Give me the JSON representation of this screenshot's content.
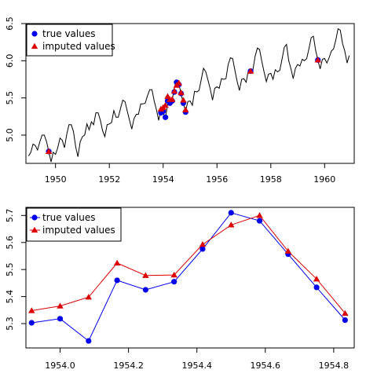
{
  "colors": {
    "true": "#0000ee",
    "imputed": "#dd0000",
    "line": "#000000",
    "axis": "#000000",
    "bg": "#ffffff"
  },
  "chart_data": [
    {
      "type": "line",
      "grid": false,
      "legend_position": "top-left",
      "xlim": [
        1948.9,
        1961.1
      ],
      "ylim": [
        4.62,
        6.5
      ],
      "xticks": [
        1950,
        1952,
        1954,
        1956,
        1958,
        1960
      ],
      "yticks": [
        5.0,
        5.5,
        6.0,
        6.5
      ],
      "ytick_labels": [
        "5.0",
        "5.5",
        "6.0",
        "6.5"
      ],
      "legend": [
        {
          "label": "true values",
          "marker": "circle",
          "color_key": "true"
        },
        {
          "label": "imputed values",
          "marker": "triangle",
          "color_key": "imputed"
        }
      ],
      "series_line": {
        "start": 1949,
        "step_months": 1,
        "values": [
          4.72,
          4.77,
          4.88,
          4.86,
          4.8,
          4.91,
          5.0,
          5.0,
          4.91,
          4.78,
          4.64,
          4.77,
          4.74,
          4.83,
          4.96,
          4.93,
          4.83,
          5.01,
          5.14,
          5.14,
          5.05,
          4.84,
          4.71,
          4.91,
          4.98,
          5.0,
          5.15,
          5.07,
          5.18,
          5.14,
          5.3,
          5.3,
          5.2,
          5.06,
          4.98,
          5.14,
          5.15,
          5.17,
          5.33,
          5.24,
          5.24,
          5.36,
          5.47,
          5.45,
          5.32,
          5.2,
          5.08,
          5.22,
          5.28,
          5.28,
          5.42,
          5.42,
          5.43,
          5.53,
          5.61,
          5.61,
          5.46,
          5.34,
          5.2,
          5.34,
          5.31,
          5.22,
          5.42,
          5.4,
          5.46,
          5.65,
          5.71,
          5.69,
          5.55,
          5.43,
          5.32,
          5.45,
          5.46,
          5.4,
          5.59,
          5.58,
          5.6,
          5.75,
          5.9,
          5.85,
          5.74,
          5.62,
          5.47,
          5.63,
          5.65,
          5.63,
          5.76,
          5.75,
          5.76,
          5.95,
          6.04,
          6.03,
          5.87,
          5.72,
          5.6,
          5.75,
          5.76,
          5.71,
          5.87,
          5.85,
          5.87,
          6.06,
          6.17,
          6.15,
          5.99,
          5.85,
          5.72,
          5.82,
          5.83,
          5.75,
          5.88,
          5.85,
          5.87,
          6.02,
          6.18,
          6.22,
          6.0,
          5.89,
          5.76,
          5.9,
          5.95,
          5.93,
          6.02,
          6.0,
          6.03,
          6.16,
          6.31,
          6.33,
          6.14,
          6.01,
          5.89,
          6.02,
          6.03,
          5.97,
          6.04,
          6.13,
          6.16,
          6.28,
          6.43,
          6.41,
          6.23,
          6.13,
          5.97,
          6.07
        ]
      },
      "true_points": {
        "x": [
          1949.75,
          1953.9167,
          1954.0,
          1954.0833,
          1954.1667,
          1954.25,
          1954.3333,
          1954.4167,
          1954.5,
          1954.5833,
          1954.6667,
          1954.75,
          1954.8333,
          1957.25,
          1959.75
        ],
        "y": [
          4.78,
          5.3,
          5.32,
          5.24,
          5.46,
          5.43,
          5.46,
          5.58,
          5.71,
          5.68,
          5.56,
          5.43,
          5.31,
          5.86,
          6.01
        ]
      },
      "imputed_points": {
        "x": [
          1949.75,
          1953.9167,
          1954.0,
          1954.0833,
          1954.1667,
          1954.25,
          1954.3333,
          1954.4167,
          1954.5,
          1954.5833,
          1954.6667,
          1954.75,
          1954.8333,
          1957.25,
          1959.75
        ],
        "y": [
          4.78,
          5.35,
          5.37,
          5.4,
          5.52,
          5.48,
          5.48,
          5.59,
          5.67,
          5.7,
          5.57,
          5.47,
          5.34,
          5.86,
          6.01
        ]
      }
    },
    {
      "type": "line",
      "grid": false,
      "legend_position": "top-left",
      "xlim": [
        1953.9,
        1954.86
      ],
      "ylim": [
        5.21,
        5.73
      ],
      "xticks": [
        1954.0,
        1954.2,
        1954.4,
        1954.6,
        1954.8
      ],
      "xtick_labels": [
        "1954.0",
        "1954.2",
        "1954.4",
        "1954.6",
        "1954.8"
      ],
      "yticks": [
        5.3,
        5.4,
        5.5,
        5.6,
        5.7
      ],
      "ytick_labels": [
        "5.3",
        "5.4",
        "5.5",
        "5.6",
        "5.7"
      ],
      "legend": [
        {
          "label": "true values",
          "marker": "circle",
          "color_key": "true"
        },
        {
          "label": "imputed values",
          "marker": "triangle",
          "color_key": "imputed"
        }
      ],
      "x": [
        1953.9167,
        1954.0,
        1954.0833,
        1954.1667,
        1954.25,
        1954.3333,
        1954.4167,
        1954.5,
        1954.5833,
        1954.6667,
        1954.75,
        1954.8333
      ],
      "series": [
        {
          "name": "true values",
          "color_key": "true",
          "marker": "circle",
          "values": [
            5.303,
            5.318,
            5.236,
            5.46,
            5.425,
            5.455,
            5.576,
            5.71,
            5.68,
            5.557,
            5.434,
            5.313
          ]
        },
        {
          "name": "imputed values",
          "color_key": "imputed",
          "marker": "triangle",
          "values": [
            5.348,
            5.365,
            5.398,
            5.524,
            5.478,
            5.48,
            5.593,
            5.665,
            5.7,
            5.568,
            5.465,
            5.338
          ]
        }
      ]
    }
  ]
}
